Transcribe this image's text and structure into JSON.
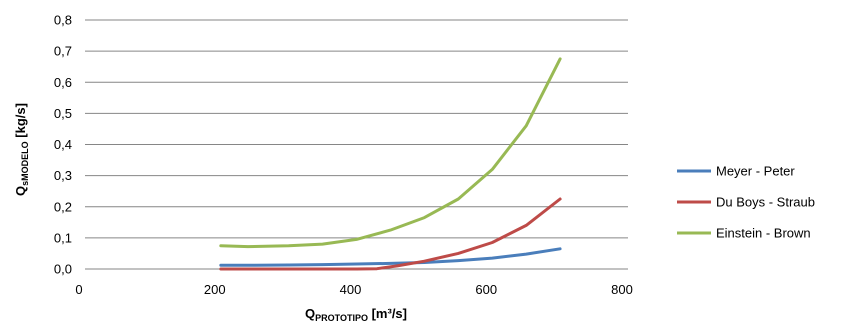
{
  "chart_data": {
    "type": "line",
    "xlabel": {
      "main": "Q",
      "sub": "PROTOTIPO",
      "unit": " [m³/s]"
    },
    "ylabel": {
      "main": "Q",
      "sub": "sMODELO",
      "unit": " [kg/s]"
    },
    "xlim": [
      0,
      800
    ],
    "ylim": [
      0,
      0.8
    ],
    "x_ticks": [
      "0",
      "200",
      "400",
      "600",
      "800"
    ],
    "y_ticks": [
      "0,0",
      "0,1",
      "0,2",
      "0,3",
      "0,4",
      "0,5",
      "0,6",
      "0,7",
      "0,8"
    ],
    "grid": "horizontal",
    "legend_position": "right",
    "series": [
      {
        "name": "Meyer - Peter",
        "color": "#4a7ebb",
        "points": [
          [
            200,
            0.012
          ],
          [
            250,
            0.012
          ],
          [
            300,
            0.013
          ],
          [
            350,
            0.014
          ],
          [
            400,
            0.016
          ],
          [
            450,
            0.018
          ],
          [
            500,
            0.021
          ],
          [
            550,
            0.027
          ],
          [
            600,
            0.035
          ],
          [
            650,
            0.048
          ],
          [
            700,
            0.065
          ]
        ]
      },
      {
        "name": "Du Boys - Straub",
        "color": "#be4b48",
        "points": [
          [
            200,
            0.0
          ],
          [
            250,
            0.0
          ],
          [
            300,
            0.0
          ],
          [
            350,
            0.0
          ],
          [
            400,
            0.0
          ],
          [
            430,
            0.001
          ],
          [
            460,
            0.01
          ],
          [
            500,
            0.025
          ],
          [
            550,
            0.05
          ],
          [
            600,
            0.085
          ],
          [
            650,
            0.14
          ],
          [
            700,
            0.225
          ]
        ]
      },
      {
        "name": "Einstein - Brown",
        "color": "#98b954",
        "points": [
          [
            200,
            0.075
          ],
          [
            240,
            0.072
          ],
          [
            300,
            0.075
          ],
          [
            350,
            0.08
          ],
          [
            400,
            0.095
          ],
          [
            450,
            0.125
          ],
          [
            500,
            0.165
          ],
          [
            550,
            0.225
          ],
          [
            600,
            0.32
          ],
          [
            650,
            0.46
          ],
          [
            700,
            0.675
          ]
        ]
      }
    ]
  }
}
